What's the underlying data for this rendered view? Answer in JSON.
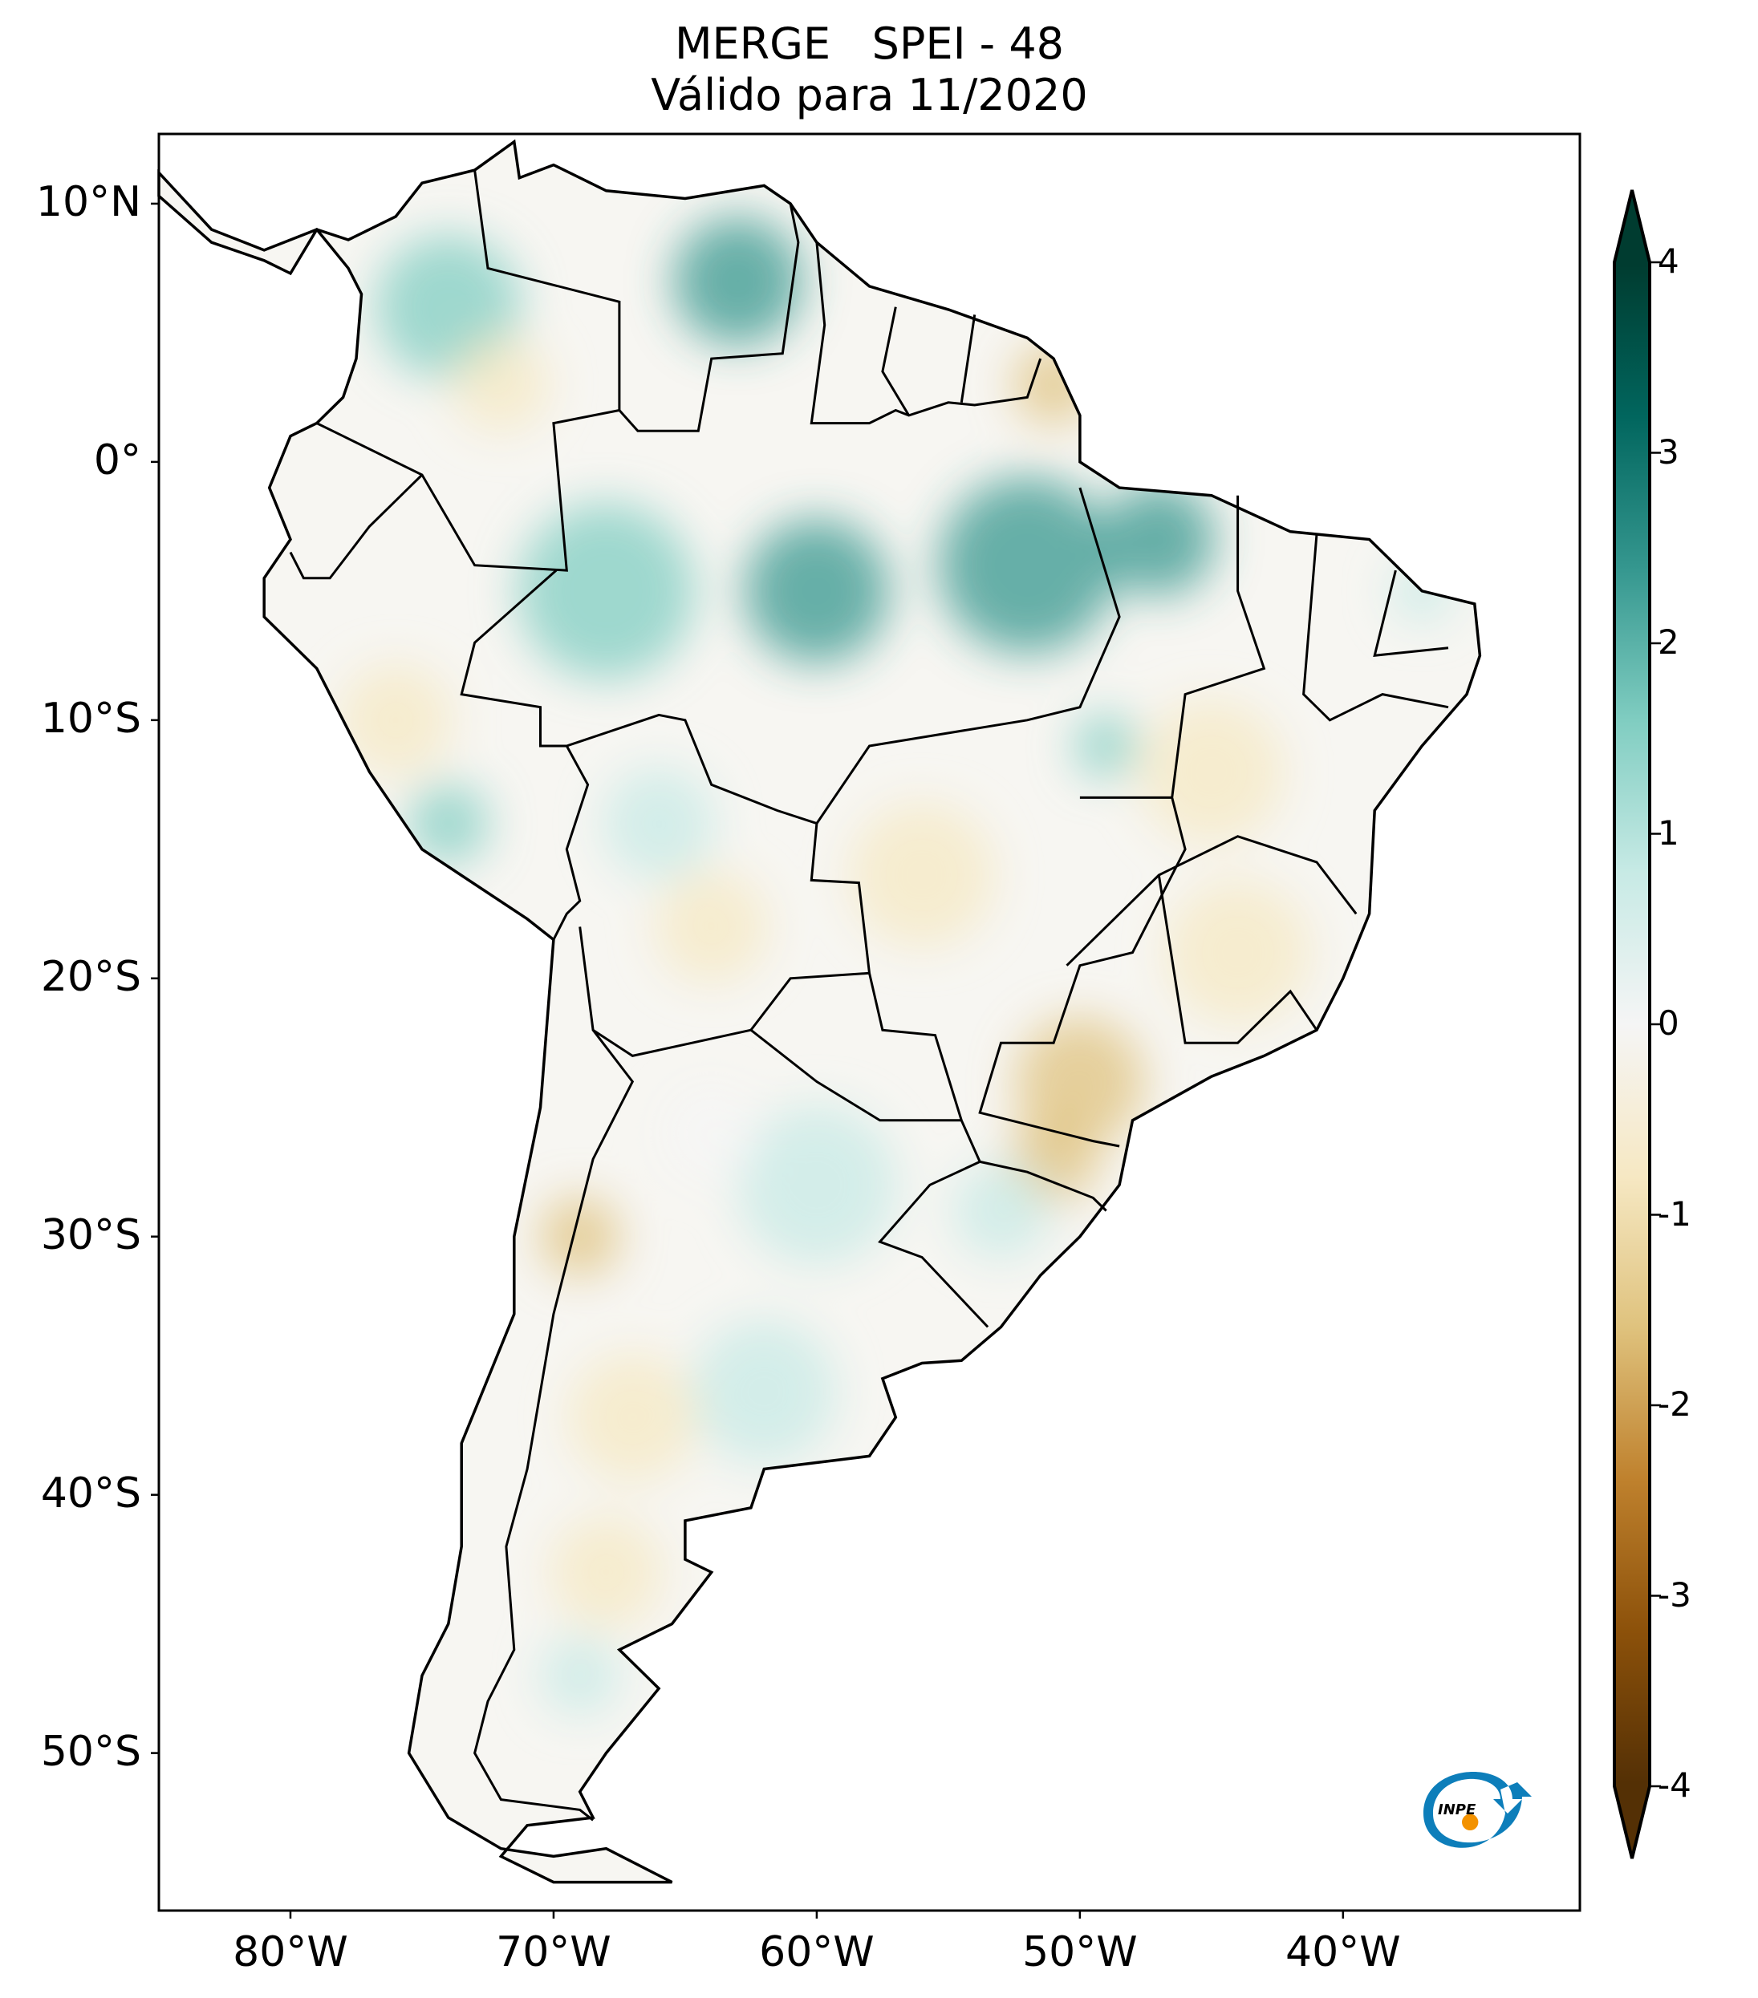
{
  "title": {
    "line1": "MERGE   SPEI - 48",
    "line2": "Válido para 11/2020"
  },
  "axes": {
    "lon_ticks": [
      "80°W",
      "70°W",
      "60°W",
      "50°W",
      "40°W"
    ],
    "lat_ticks": [
      "10°N",
      "0°",
      "10°S",
      "20°S",
      "30°S",
      "40°S",
      "50°S"
    ],
    "lon_range": [
      -85,
      -31
    ],
    "lat_range": [
      -56.1,
      12.7
    ],
    "projection": "plate carree"
  },
  "colorbar": {
    "ticks": [
      "4",
      "3",
      "2",
      "1",
      "0",
      "-1",
      "-2",
      "-3",
      "-4"
    ],
    "range": [
      -4,
      4
    ],
    "extend": "both",
    "colormap": "BrBG",
    "colors": [
      "#543005",
      "#8c510a",
      "#bf812d",
      "#dfc27d",
      "#f6e8c3",
      "#f5f5f5",
      "#c7eae5",
      "#80cdc1",
      "#35978f",
      "#01665e",
      "#003c30"
    ]
  },
  "logo": {
    "text": "INPE",
    "colors": {
      "blue": "#0077b6",
      "orange": "#f39200"
    }
  }
}
